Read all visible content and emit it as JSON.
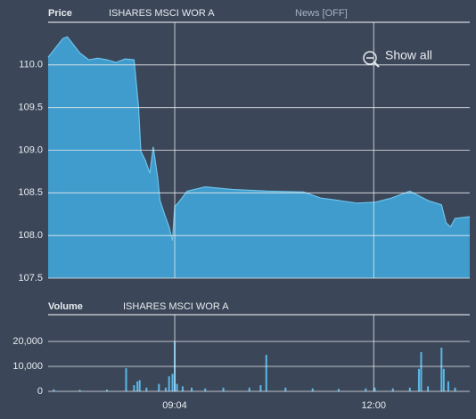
{
  "controls": {
    "news": "News [OFF]",
    "show_all": "Show all"
  },
  "chart_data": [
    {
      "type": "area",
      "title": "Price",
      "subtitle": "ISHARES MSCI WOR A",
      "color": "#3f9ccc",
      "line_color": "#6cc3ec",
      "grid": true,
      "x": [
        "07:12",
        "07:25",
        "07:29",
        "07:40",
        "07:48",
        "07:56",
        "08:04",
        "08:12",
        "08:20",
        "08:28",
        "08:32",
        "08:34",
        "08:38",
        "08:42",
        "08:45",
        "08:49",
        "08:51",
        "08:55",
        "08:59",
        "09:02",
        "09:04",
        "09:07",
        "09:15",
        "09:31",
        "09:55",
        "10:26",
        "10:58",
        "11:13",
        "11:29",
        "11:45",
        "12:01",
        "12:16",
        "12:32",
        "12:48",
        "13:00",
        "13:04",
        "13:08",
        "13:12",
        "13:25"
      ],
      "values": [
        110.09,
        110.31,
        110.33,
        110.14,
        110.06,
        110.08,
        110.06,
        110.03,
        110.07,
        110.06,
        109.51,
        108.99,
        108.88,
        108.73,
        109.04,
        108.67,
        108.41,
        108.25,
        108.1,
        107.94,
        108.34,
        108.38,
        108.52,
        108.57,
        108.54,
        108.52,
        108.51,
        108.44,
        108.41,
        108.38,
        108.39,
        108.44,
        108.52,
        108.41,
        108.36,
        108.15,
        108.1,
        108.2,
        108.22
      ],
      "xlim": [
        "07:12",
        "13:25"
      ],
      "ylim": [
        107.5,
        110.5
      ],
      "yticks": [
        {
          "value": 110,
          "label": "110.0"
        },
        109.5,
        {
          "value": 109,
          "label": "109.0"
        },
        108.5,
        {
          "value": 108,
          "label": "108.0"
        },
        107.5
      ]
    },
    {
      "type": "bar",
      "title": "Volume",
      "subtitle": "ISHARES MSCI WOR A",
      "color": "#5ab8e6",
      "grid": true,
      "x": [
        "07:17",
        "07:40",
        "08:04",
        "08:21",
        "08:28",
        "08:31",
        "08:33",
        "08:39",
        "08:50",
        "08:56",
        "08:59",
        "09:02",
        "09:04",
        "09:06",
        "09:11",
        "09:19",
        "09:31",
        "09:47",
        "10:10",
        "10:20",
        "10:25",
        "10:42",
        "11:06",
        "11:29",
        "11:53",
        "12:01",
        "12:17",
        "12:32",
        "12:40",
        "12:42",
        "12:48",
        "13:00",
        "13:02",
        "13:06",
        "13:12"
      ],
      "values": [
        800,
        600,
        700,
        9300,
        2500,
        4000,
        4500,
        1500,
        3000,
        1500,
        6000,
        7000,
        20000,
        3000,
        2000,
        1500,
        1200,
        1500,
        1500,
        2500,
        14600,
        1500,
        1200,
        1000,
        1200,
        1500,
        1200,
        1500,
        9000,
        15700,
        2000,
        17500,
        9000,
        4000,
        1500
      ],
      "xlim": [
        "07:12",
        "13:25"
      ],
      "xticks": [
        "09:04",
        "12:00"
      ],
      "ylim": [
        0,
        30700
      ],
      "yticks": [
        {
          "value": 20000,
          "label": "20,000"
        },
        {
          "value": 10000,
          "label": "10,000"
        },
        0
      ]
    }
  ]
}
